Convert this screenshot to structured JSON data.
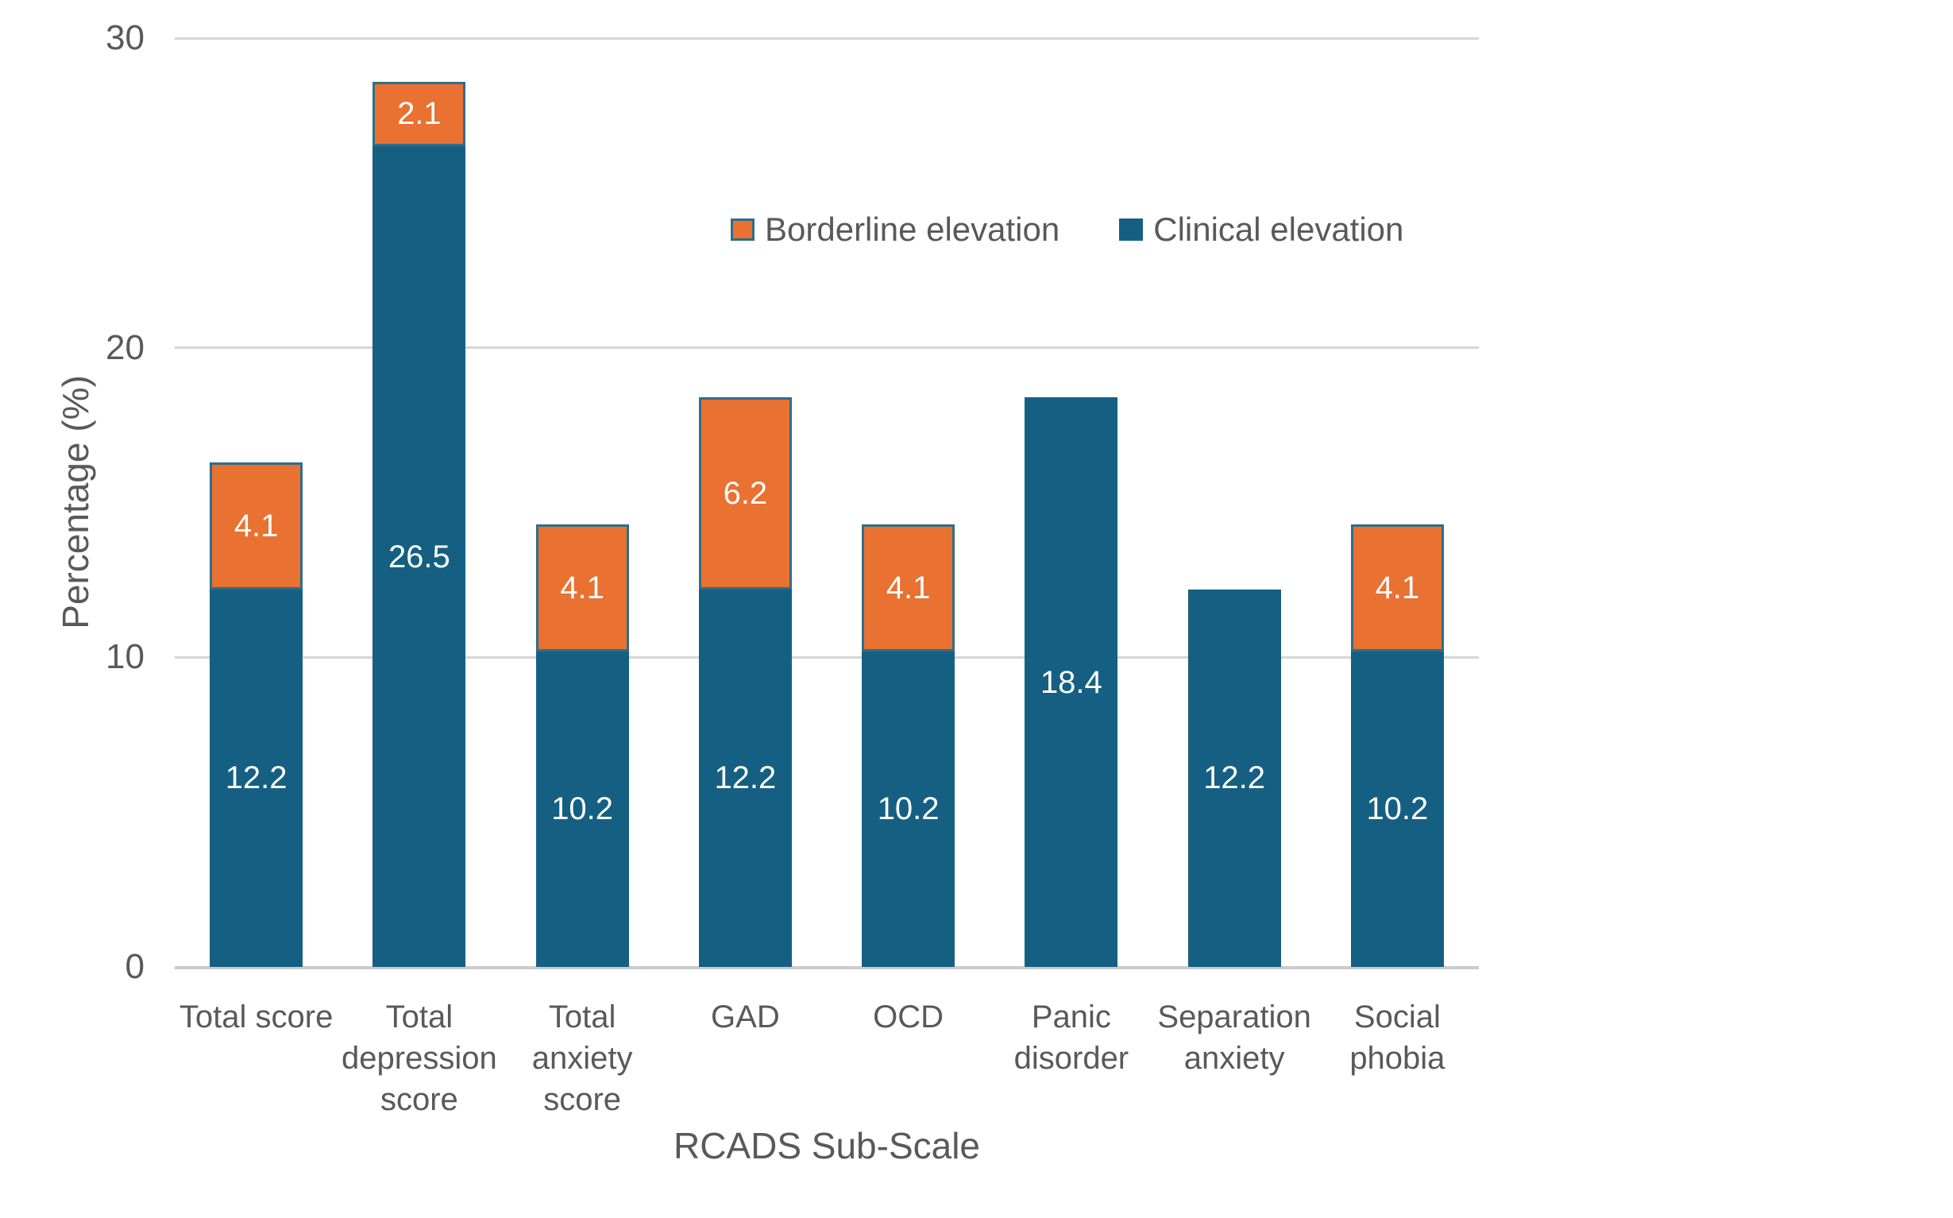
{
  "chart_data": {
    "type": "bar",
    "stacked": true,
    "title": "",
    "xlabel": "RCADS Sub-Scale",
    "ylabel": "Percentage (%)",
    "ylim": [
      0,
      30
    ],
    "yticks": [
      0,
      10,
      20,
      30
    ],
    "grid": "horizontal",
    "data_labels": "inside-center-white",
    "categories": [
      "Total score",
      "Total depression score",
      "Total anxiety score",
      "GAD",
      "OCD",
      "Panic disorder",
      "Separation anxiety",
      "Social phobia"
    ],
    "category_lines": [
      [
        "Total score"
      ],
      [
        "Total",
        "depression",
        "score"
      ],
      [
        "Total",
        "anxiety",
        "score"
      ],
      [
        "GAD"
      ],
      [
        "OCD"
      ],
      [
        "Panic",
        "disorder"
      ],
      [
        "Separation",
        "anxiety"
      ],
      [
        "Social",
        "phobia"
      ]
    ],
    "series": [
      {
        "name": "Clinical elevation",
        "color": "#156082",
        "bordered": false,
        "values": [
          12.2,
          26.5,
          10.2,
          12.2,
          10.2,
          18.4,
          12.2,
          10.2
        ]
      },
      {
        "name": "Borderline elevation",
        "color": "#E97132",
        "bordered": true,
        "border_color": "#2E6E8A",
        "values": [
          4.1,
          2.1,
          4.1,
          6.2,
          4.1,
          0,
          0,
          4.1
        ]
      }
    ],
    "legend": {
      "position": "top-right",
      "entries": [
        {
          "label": "Borderline elevation",
          "color": "#E97132",
          "bordered": true,
          "border_color": "#2E6E8A"
        },
        {
          "label": "Clinical elevation",
          "color": "#156082",
          "bordered": false
        }
      ]
    }
  },
  "colors": {
    "background": "#FFFFFF",
    "gridline": "#D6D6D6",
    "axis_text": "#595959",
    "data_label_text": "#FFFFFF"
  }
}
